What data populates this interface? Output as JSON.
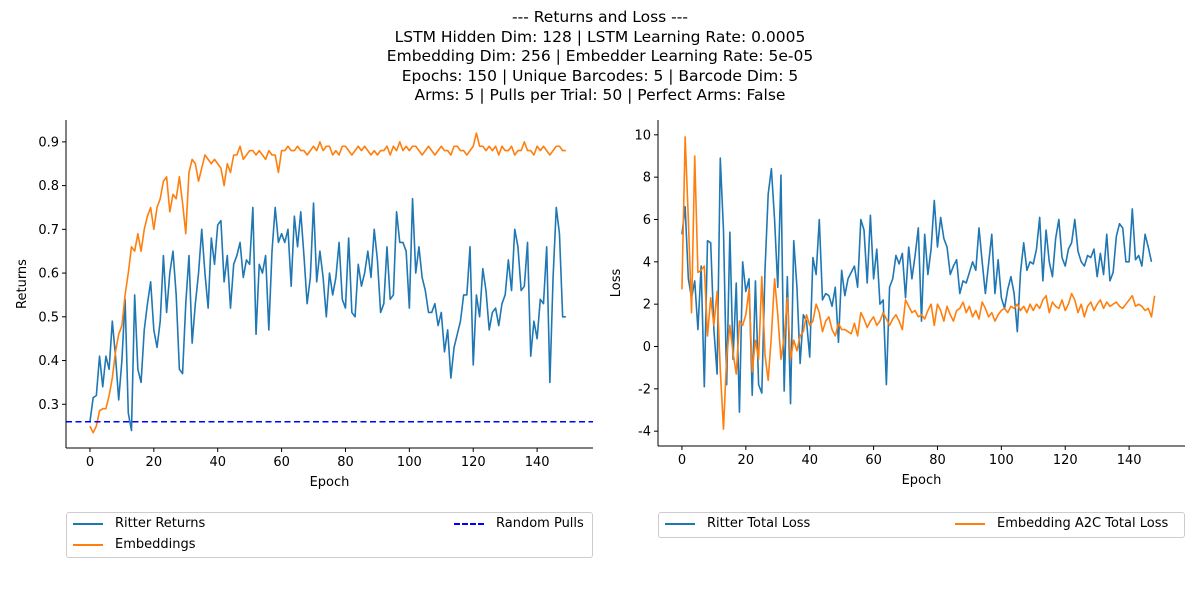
{
  "title_lines": [
    "--- Returns and Loss ---",
    "LSTM Hidden Dim: 128 | LSTM Learning Rate: 0.0005",
    "Embedding Dim: 256 | Embedder Learning Rate: 5e-05",
    "Epochs: 150 | Unique Barcodes: 5 | Barcode Dim: 5",
    "Arms: 5 | Pulls per Trial: 50 | Perfect Arms: False"
  ],
  "colors": {
    "blue_series": "#1f77b4",
    "orange_series": "#ff7f0e",
    "random_line": "#0000ff"
  },
  "chart_data": [
    {
      "type": "line",
      "xlabel": "Epoch",
      "ylabel": "Returns",
      "xlim": [
        -7.5,
        157.5
      ],
      "ylim": [
        0.2,
        0.95
      ],
      "xticks": [
        0,
        20,
        40,
        60,
        80,
        100,
        120,
        140
      ],
      "yticks": [
        0.3,
        0.4,
        0.5,
        0.6,
        0.7,
        0.8,
        0.9
      ],
      "grid": false,
      "legend_position": "below",
      "series": [
        {
          "name": "Ritter Returns",
          "color": "#1f77b4",
          "style": "solid",
          "values": [
            0.26,
            0.315,
            0.32,
            0.41,
            0.34,
            0.41,
            0.38,
            0.49,
            0.41,
            0.31,
            0.4,
            0.54,
            0.28,
            0.24,
            0.55,
            0.38,
            0.35,
            0.47,
            0.53,
            0.58,
            0.47,
            0.43,
            0.49,
            0.64,
            0.51,
            0.6,
            0.65,
            0.55,
            0.38,
            0.37,
            0.53,
            0.64,
            0.44,
            0.53,
            0.6,
            0.7,
            0.6,
            0.52,
            0.68,
            0.62,
            0.71,
            0.72,
            0.58,
            0.64,
            0.52,
            0.62,
            0.64,
            0.67,
            0.59,
            0.63,
            0.62,
            0.75,
            0.46,
            0.62,
            0.6,
            0.64,
            0.47,
            0.65,
            0.75,
            0.67,
            0.69,
            0.67,
            0.7,
            0.57,
            0.73,
            0.66,
            0.74,
            0.64,
            0.53,
            0.59,
            0.76,
            0.58,
            0.65,
            0.59,
            0.5,
            0.6,
            0.55,
            0.59,
            0.67,
            0.54,
            0.52,
            0.68,
            0.51,
            0.5,
            0.62,
            0.57,
            0.6,
            0.65,
            0.59,
            0.7,
            0.63,
            0.51,
            0.53,
            0.66,
            0.54,
            0.55,
            0.74,
            0.67,
            0.67,
            0.65,
            0.52,
            0.77,
            0.6,
            0.66,
            0.59,
            0.56,
            0.51,
            0.51,
            0.53,
            0.48,
            0.51,
            0.42,
            0.47,
            0.36,
            0.43,
            0.46,
            0.49,
            0.55,
            0.55,
            0.66,
            0.39,
            0.55,
            0.5,
            0.61,
            0.56,
            0.47,
            0.51,
            0.52,
            0.48,
            0.53,
            0.55,
            0.63,
            0.56,
            0.7,
            0.66,
            0.56,
            0.57,
            0.67,
            0.41,
            0.49,
            0.45,
            0.54,
            0.53,
            0.66,
            0.35,
            0.59,
            0.75,
            0.69,
            0.5,
            0.5
          ]
        },
        {
          "name": "Embeddings",
          "color": "#ff7f0e",
          "style": "solid",
          "values": [
            0.25,
            0.235,
            0.25,
            0.285,
            0.29,
            0.29,
            0.32,
            0.36,
            0.42,
            0.46,
            0.48,
            0.55,
            0.6,
            0.66,
            0.65,
            0.69,
            0.65,
            0.7,
            0.73,
            0.75,
            0.7,
            0.75,
            0.77,
            0.81,
            0.82,
            0.74,
            0.78,
            0.77,
            0.82,
            0.76,
            0.69,
            0.83,
            0.86,
            0.85,
            0.81,
            0.84,
            0.87,
            0.86,
            0.85,
            0.86,
            0.85,
            0.84,
            0.8,
            0.85,
            0.83,
            0.87,
            0.87,
            0.89,
            0.86,
            0.87,
            0.88,
            0.88,
            0.87,
            0.88,
            0.87,
            0.86,
            0.88,
            0.87,
            0.87,
            0.83,
            0.88,
            0.88,
            0.89,
            0.88,
            0.88,
            0.89,
            0.88,
            0.88,
            0.87,
            0.88,
            0.89,
            0.88,
            0.9,
            0.88,
            0.89,
            0.89,
            0.87,
            0.88,
            0.87,
            0.89,
            0.89,
            0.88,
            0.87,
            0.88,
            0.89,
            0.88,
            0.89,
            0.88,
            0.87,
            0.88,
            0.87,
            0.88,
            0.88,
            0.89,
            0.87,
            0.89,
            0.88,
            0.9,
            0.88,
            0.89,
            0.88,
            0.89,
            0.89,
            0.88,
            0.87,
            0.88,
            0.89,
            0.88,
            0.87,
            0.88,
            0.89,
            0.88,
            0.88,
            0.87,
            0.89,
            0.89,
            0.88,
            0.88,
            0.87,
            0.88,
            0.89,
            0.92,
            0.89,
            0.89,
            0.88,
            0.89,
            0.88,
            0.89,
            0.87,
            0.89,
            0.88,
            0.88,
            0.89,
            0.87,
            0.88,
            0.88,
            0.9,
            0.88,
            0.88,
            0.87,
            0.89,
            0.88,
            0.89,
            0.88,
            0.87,
            0.88,
            0.89,
            0.89,
            0.88,
            0.88
          ]
        },
        {
          "name": "Random Pulls",
          "color": "#0000ff",
          "style": "dashed",
          "constant": 0.26
        }
      ]
    },
    {
      "type": "line",
      "xlabel": "Epoch",
      "ylabel": "Loss",
      "xlim": [
        -7.5,
        157.5
      ],
      "ylim": [
        -4.7,
        10.7
      ],
      "xticks": [
        0,
        20,
        40,
        60,
        80,
        100,
        120,
        140
      ],
      "yticks": [
        -4,
        -2,
        0,
        2,
        4,
        6,
        8,
        10
      ],
      "grid": false,
      "legend_position": "below",
      "series": [
        {
          "name": "Ritter Total Loss",
          "color": "#1f77b4",
          "style": "solid",
          "values": [
            5.3,
            6.6,
            3.2,
            2.3,
            3.1,
            0.8,
            3.8,
            -1.9,
            5.0,
            4.9,
            0.8,
            -1.3,
            8.9,
            5.5,
            -1.8,
            5.4,
            -0.6,
            3.0,
            -3.1,
            4.0,
            2.6,
            3.2,
            -2.3,
            3.1,
            -1.8,
            -2.2,
            3.6,
            7.2,
            8.4,
            6.0,
            2.8,
            8.1,
            -2.1,
            3.3,
            -2.7,
            5.0,
            2.8,
            -0.8,
            1.5,
            1.2,
            -0.5,
            4.2,
            3.4,
            6.0,
            2.2,
            2.5,
            2.4,
            1.9,
            2.8,
            0.2,
            3.6,
            2.4,
            3.2,
            3.5,
            3.8,
            2.8,
            6.0,
            5.5,
            3.0,
            6.2,
            3.2,
            4.6,
            2.0,
            2.2,
            -1.8,
            2.8,
            3.2,
            4.3,
            3.9,
            4.4,
            2.3,
            4.7,
            3.2,
            4.3,
            5.6,
            1.2,
            5.3,
            3.4,
            4.6,
            6.9,
            4.7,
            6.1,
            5.1,
            4.7,
            3.4,
            3.8,
            4.1,
            2.5,
            3.1,
            3.0,
            3.5,
            4.0,
            3.6,
            5.6,
            4.0,
            2.5,
            3.9,
            5.3,
            2.5,
            4.1,
            2.3,
            1.8,
            2.7,
            3.3,
            2.5,
            0.7,
            3.5,
            4.9,
            3.6,
            4.0,
            3.9,
            4.6,
            6.1,
            3.1,
            5.5,
            4.0,
            3.3,
            5.1,
            6.0,
            4.2,
            3.8,
            4.6,
            4.9,
            6.0,
            4.5,
            4.0,
            3.8,
            4.3,
            4.2,
            4.6,
            3.3,
            4.4,
            3.4,
            5.3,
            3.1,
            3.5,
            5.2,
            5.8,
            5.6,
            4.0,
            4.0,
            6.5,
            4.1,
            4.3,
            3.8,
            5.3,
            4.7,
            4.0
          ]
        },
        {
          "name": "Embedding A2C Total Loss",
          "color": "#ff7f0e",
          "style": "solid",
          "values": [
            2.7,
            9.9,
            6.0,
            1.6,
            9.0,
            3.5,
            3.6,
            3.8,
            0.5,
            2.3,
            1.0,
            2.6,
            -1.1,
            -3.9,
            -0.5,
            1.0,
            -0.3,
            -1.3,
            1.2,
            1.0,
            1.5,
            2.7,
            -1.2,
            0.3,
            -0.6,
            3.3,
            -0.4,
            -1.6,
            0.5,
            3.2,
            1.5,
            -0.6,
            0.4,
            2.3,
            -0.6,
            0.3,
            -0.2,
            0.5,
            0.7,
            1.5,
            1.0,
            1.2,
            2.0,
            1.6,
            0.7,
            1.2,
            1.4,
            0.8,
            0.5,
            1.1,
            0.8,
            0.8,
            0.7,
            0.6,
            1.1,
            0.5,
            1.6,
            1.3,
            0.9,
            1.2,
            1.4,
            1.0,
            1.2,
            1.6,
            1.3,
            1.0,
            1.3,
            1.5,
            1.2,
            0.8,
            2.2,
            1.9,
            1.6,
            1.7,
            1.4,
            1.5,
            1.3,
            1.7,
            2.0,
            1.0,
            2.0,
            1.7,
            1.2,
            1.9,
            1.5,
            1.2,
            1.7,
            1.8,
            2.1,
            1.6,
            1.9,
            1.4,
            1.7,
            1.3,
            2.1,
            1.8,
            1.4,
            1.6,
            1.2,
            1.5,
            1.7,
            1.8,
            1.6,
            1.9,
            1.8,
            2.0,
            1.7,
            1.9,
            1.6,
            2.0,
            1.7,
            2.0,
            1.8,
            2.2,
            2.4,
            1.6,
            2.1,
            1.9,
            1.8,
            2.2,
            1.7,
            2.0,
            2.5,
            2.2,
            1.6,
            2.0,
            1.4,
            1.9,
            2.1,
            1.7,
            2.0,
            2.2,
            1.8,
            2.1,
            1.9,
            2.0,
            2.1,
            1.9,
            1.8,
            2.0,
            2.2,
            2.4,
            1.9,
            2.0,
            1.9,
            1.7,
            1.8,
            1.4,
            2.4
          ]
        }
      ]
    }
  ]
}
